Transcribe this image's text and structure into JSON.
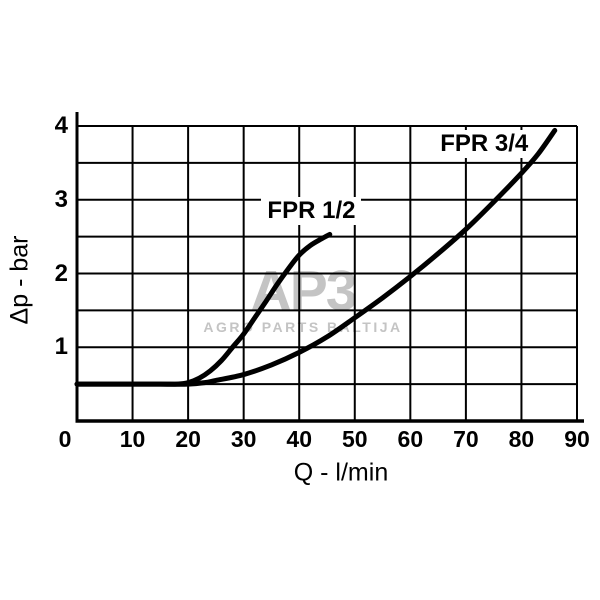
{
  "watermark": {
    "logo": "AP3",
    "subtext": "AGRO PARTS BALTIJA",
    "color": "#c4c4c4"
  },
  "chart_data": {
    "type": "line",
    "title": "",
    "xlabel": "Q - l/min",
    "ylabel": "Δp - bar",
    "xlim": [
      0,
      90
    ],
    "ylim": [
      0,
      4
    ],
    "x_ticks": [
      0,
      10,
      20,
      30,
      40,
      50,
      60,
      70,
      80,
      90
    ],
    "y_ticks": [
      1,
      2,
      3,
      4
    ],
    "x_grid_step": 10,
    "y_grid_step": 0.5,
    "grid": true,
    "legend_position": "inline-labels",
    "axis_color": "#000000",
    "curve_color": "#000000",
    "series": [
      {
        "name": "FPR 1/2",
        "label_at": [
          42.2,
          2.85
        ],
        "points": [
          [
            0,
            0.5
          ],
          [
            5,
            0.5
          ],
          [
            10,
            0.5
          ],
          [
            15,
            0.5
          ],
          [
            18,
            0.5
          ],
          [
            20,
            0.52
          ],
          [
            22,
            0.58
          ],
          [
            24,
            0.68
          ],
          [
            26,
            0.82
          ],
          [
            28,
            1.0
          ],
          [
            30,
            1.18
          ],
          [
            32,
            1.4
          ],
          [
            34,
            1.62
          ],
          [
            36,
            1.85
          ],
          [
            38,
            2.06
          ],
          [
            40,
            2.25
          ],
          [
            42,
            2.38
          ],
          [
            44,
            2.47
          ],
          [
            45.5,
            2.53
          ]
        ]
      },
      {
        "name": "FPR 3/4",
        "label_at": [
          73.3,
          3.76
        ],
        "points": [
          [
            0,
            0.5
          ],
          [
            5,
            0.5
          ],
          [
            10,
            0.5
          ],
          [
            15,
            0.5
          ],
          [
            20,
            0.5
          ],
          [
            23,
            0.52
          ],
          [
            25,
            0.55
          ],
          [
            30,
            0.63
          ],
          [
            35,
            0.76
          ],
          [
            40,
            0.93
          ],
          [
            45,
            1.14
          ],
          [
            50,
            1.4
          ],
          [
            55,
            1.67
          ],
          [
            60,
            1.96
          ],
          [
            65,
            2.27
          ],
          [
            70,
            2.6
          ],
          [
            75,
            2.97
          ],
          [
            80,
            3.36
          ],
          [
            83,
            3.62
          ],
          [
            86,
            3.94
          ]
        ]
      }
    ]
  }
}
